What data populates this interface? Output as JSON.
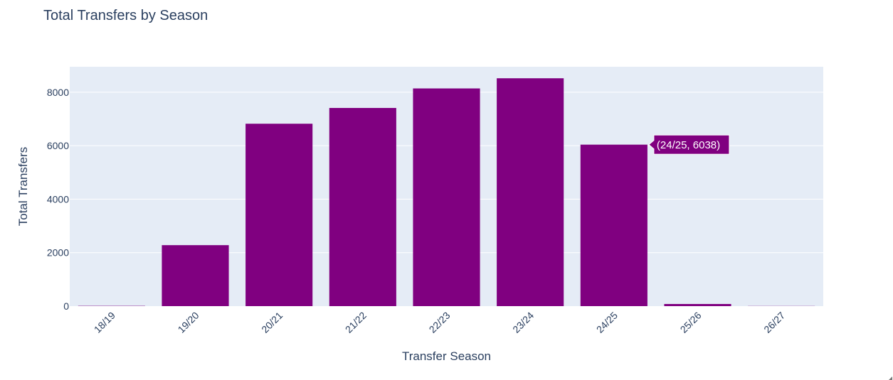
{
  "chart_data": {
    "type": "bar",
    "title": "Total Transfers by Season",
    "xlabel": "Transfer Season",
    "ylabel": "Total Transfers",
    "categories": [
      "18/19",
      "19/20",
      "20/21",
      "21/22",
      "22/23",
      "23/24",
      "24/25",
      "25/26",
      "26/27"
    ],
    "values": [
      10,
      2280,
      6820,
      7410,
      8140,
      8520,
      6038,
      80,
      5
    ],
    "ylim": [
      0,
      8950
    ],
    "yticks": [
      0,
      2000,
      4000,
      6000,
      8000
    ],
    "ytick_labels": [
      "0",
      "2000",
      "4000",
      "6000",
      "8000"
    ],
    "grid": true,
    "legend": "none",
    "colors": {
      "bar": "#800080",
      "plot_background": "#e5ecf6",
      "gridline": "#ffffff",
      "text": "#2a3f5f",
      "tooltip_background": "#800080",
      "tooltip_text": "#ffffff"
    },
    "tooltip": {
      "category": "24/25",
      "text": "(24/25, 6038)"
    }
  }
}
